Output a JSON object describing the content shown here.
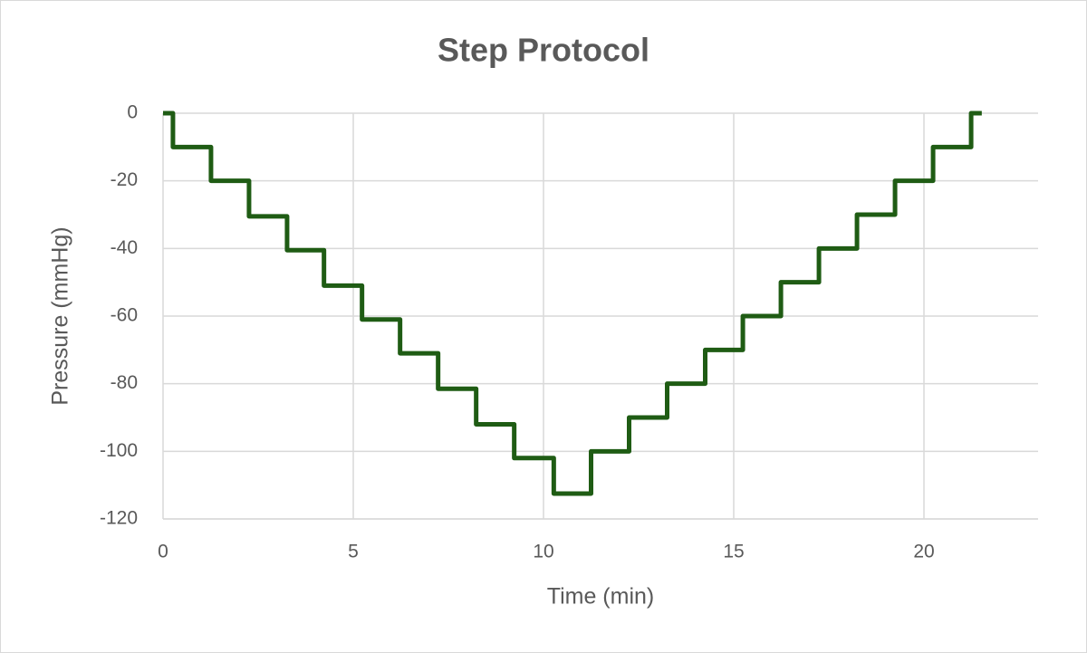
{
  "chart_data": {
    "type": "line",
    "title": "Step Protocol",
    "x_label": "Time (min)",
    "y_label": "Pressure (mmHg)",
    "x": [
      0,
      0.26,
      0.26,
      1.26,
      1.26,
      2.26,
      2.26,
      3.26,
      3.26,
      4.23,
      4.23,
      5.23,
      5.23,
      6.23,
      6.23,
      7.23,
      7.23,
      8.23,
      8.23,
      9.23,
      9.23,
      10.27,
      10.27,
      11.25,
      11.25,
      12.25,
      12.25,
      13.25,
      13.25,
      14.25,
      14.25,
      15.24,
      15.24,
      16.24,
      16.24,
      17.24,
      17.24,
      18.24,
      18.24,
      19.24,
      19.24,
      20.24,
      20.24,
      21.24,
      21.24,
      21.52
    ],
    "values": [
      0,
      0,
      -10,
      -10,
      -20,
      -20,
      -30.5,
      -30.5,
      -40.5,
      -40.5,
      -51,
      -51,
      -61,
      -61,
      -71,
      -71,
      -81.5,
      -81.5,
      -92,
      -92,
      -102,
      -102,
      -112.5,
      -112.5,
      -100,
      -100,
      -90,
      -90,
      -80,
      -80,
      -70,
      -70,
      -60,
      -60,
      -50,
      -50,
      -40,
      -40,
      -30,
      -30,
      -20,
      -20,
      -10,
      -10,
      0,
      0
    ],
    "color": "#1f5c14",
    "xlim": [
      0,
      23
    ],
    "xticks": [
      0,
      5,
      10,
      15,
      20
    ],
    "ylim": [
      -120,
      0
    ],
    "yticks": [
      -120,
      -100,
      -80,
      -60,
      -40,
      -20,
      0
    ],
    "grid": true
  }
}
